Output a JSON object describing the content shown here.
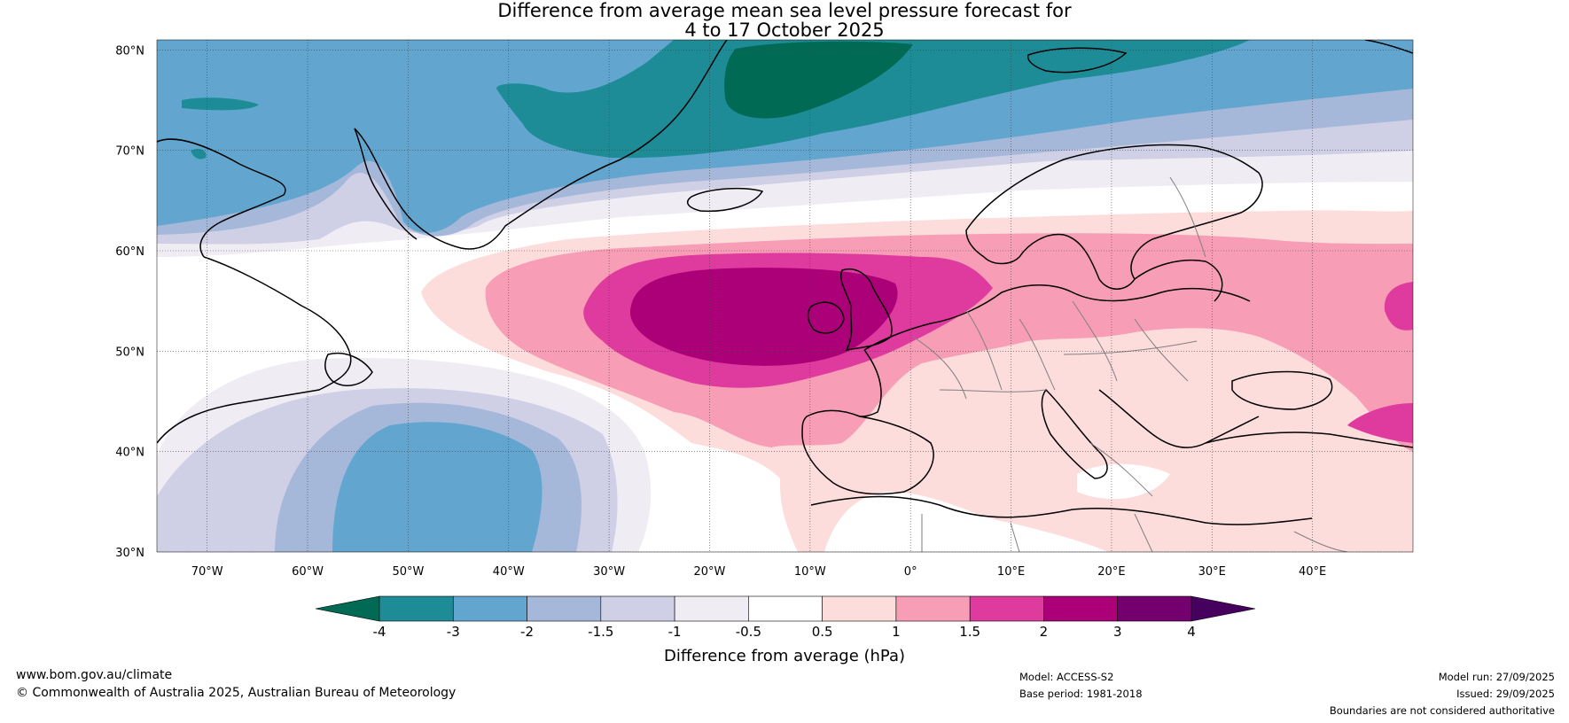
{
  "title": {
    "line1": "Difference from average mean sea level pressure forecast for",
    "line2": "4 to 17 October 2025"
  },
  "map": {
    "lat_labels": [
      "80°N",
      "70°N",
      "60°N",
      "50°N",
      "40°N",
      "30°N"
    ],
    "lon_labels": [
      "70°W",
      "60°W",
      "50°W",
      "40°W",
      "30°W",
      "20°W",
      "10°W",
      "0°",
      "10°E",
      "20°E",
      "30°E",
      "40°E"
    ],
    "lat_range": [
      30,
      81
    ],
    "lon_range": [
      -75,
      50
    ]
  },
  "colorbar": {
    "label": "Difference from average (hPa)",
    "ticks": [
      "-4",
      "-3",
      "-2",
      "-1.5",
      "-1",
      "-0.5",
      "0.5",
      "1",
      "1.5",
      "2",
      "3",
      "4"
    ],
    "colors": [
      "#006a55",
      "#1e8c97",
      "#62a6cf",
      "#a6b8da",
      "#cfd0e6",
      "#efecf4",
      "#ffffff",
      "#fddcdc",
      "#f79db6",
      "#df3a9d",
      "#ab0078",
      "#74006f",
      "#46005e"
    ]
  },
  "footer": {
    "website": "www.bom.gov.au/climate",
    "copyright": "© Commonwealth of Australia 2025, Australian Bureau of Meteorology",
    "model": "Model: ACCESS-S2",
    "base_period": "Base period: 1981-2018",
    "model_run": "Model run: 27/09/2025",
    "issued": "Issued: 29/09/2025",
    "disclaimer": "Boundaries are not considered authoritative"
  }
}
